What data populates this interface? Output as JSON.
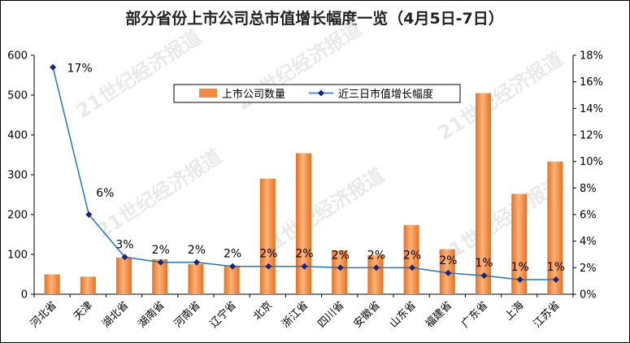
{
  "chart_data": {
    "type": "bar",
    "title": "部分省份上市公司总市值增长幅度一览（4月5日-7日）",
    "categories": [
      "河北省",
      "天津",
      "湖北省",
      "湖南省",
      "河南省",
      "辽宁省",
      "北京",
      "浙江省",
      "四川省",
      "安徽省",
      "山东省",
      "福建省",
      "广东省",
      "上海",
      "江苏省"
    ],
    "series": [
      {
        "name": "上市公司数量",
        "type": "bar",
        "axis": "left",
        "color": "#f58a3c",
        "values": [
          50,
          44,
          92,
          88,
          76,
          72,
          290,
          354,
          110,
          98,
          174,
          113,
          505,
          252,
          333
        ]
      },
      {
        "name": "近三日市值增长幅度",
        "type": "line",
        "axis": "right",
        "color": "#1f77c4",
        "values": [
          17.1,
          6.0,
          2.8,
          2.4,
          2.4,
          2.1,
          2.1,
          2.1,
          2.0,
          2.0,
          2.0,
          1.6,
          1.4,
          1.1,
          1.1
        ],
        "labels": [
          "17%",
          "6%",
          "3%",
          "2%",
          "2%",
          "2%",
          "2%",
          "2%",
          "2%",
          "2%",
          "2%",
          "2%",
          "1%",
          "1%",
          "1%"
        ]
      }
    ],
    "yleft": {
      "ylim": [
        0,
        600
      ],
      "ticks": [
        "0",
        "100",
        "200",
        "300",
        "400",
        "500",
        "600"
      ]
    },
    "yright": {
      "ylim": [
        0,
        18
      ],
      "ticks": [
        "0%",
        "2%",
        "4%",
        "6%",
        "8%",
        "10%",
        "12%",
        "14%",
        "16%",
        "18%"
      ]
    },
    "legend_position": "top-center",
    "watermark": "21世纪经济报道"
  }
}
